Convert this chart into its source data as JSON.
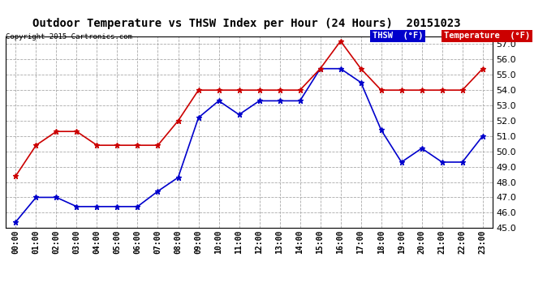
{
  "title": "Outdoor Temperature vs THSW Index per Hour (24 Hours)  20151023",
  "copyright": "Copyright 2015 Cartronics.com",
  "hours": [
    "00:00",
    "01:00",
    "02:00",
    "03:00",
    "04:00",
    "05:00",
    "06:00",
    "07:00",
    "08:00",
    "09:00",
    "10:00",
    "11:00",
    "12:00",
    "13:00",
    "14:00",
    "15:00",
    "16:00",
    "17:00",
    "18:00",
    "19:00",
    "20:00",
    "21:00",
    "22:00",
    "23:00"
  ],
  "temperature": [
    48.4,
    50.4,
    51.3,
    51.3,
    50.4,
    50.4,
    50.4,
    50.4,
    52.0,
    54.0,
    54.0,
    54.0,
    54.0,
    54.0,
    54.0,
    55.4,
    57.2,
    55.4,
    54.0,
    54.0,
    54.0,
    54.0,
    54.0,
    55.4
  ],
  "thsw": [
    45.4,
    47.0,
    47.0,
    46.4,
    46.4,
    46.4,
    46.4,
    47.4,
    48.3,
    52.2,
    53.3,
    52.4,
    53.3,
    53.3,
    53.3,
    55.4,
    55.4,
    54.5,
    51.4,
    49.3,
    50.2,
    49.3,
    49.3,
    51.0
  ],
  "temp_color": "#cc0000",
  "thsw_color": "#0000cc",
  "ylim": [
    45.0,
    57.5
  ],
  "yticks": [
    45.0,
    46.0,
    47.0,
    48.0,
    49.0,
    50.0,
    51.0,
    52.0,
    53.0,
    54.0,
    55.0,
    56.0,
    57.0
  ],
  "bg_color": "#ffffff",
  "grid_color": "#aaaaaa",
  "legend_thsw_bg": "#0000cc",
  "legend_temp_bg": "#cc0000",
  "marker": "*",
  "markersize": 5,
  "linewidth": 1.2
}
